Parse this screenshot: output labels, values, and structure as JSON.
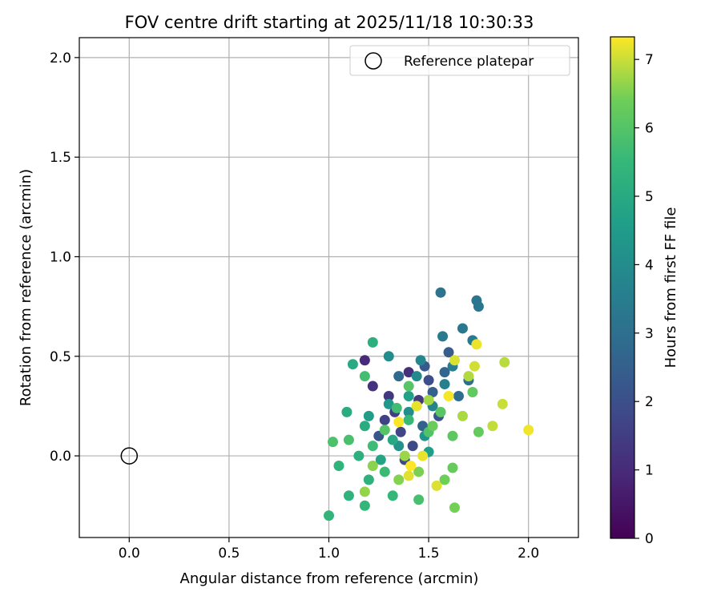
{
  "chart_data": {
    "type": "scatter",
    "title": "FOV centre drift starting at 2025/11/18 10:30:33",
    "xlabel": "Angular distance from reference (arcmin)",
    "ylabel": "Rotation from reference (arcmin)",
    "xlim": [
      -0.25,
      2.25
    ],
    "ylim": [
      -0.41,
      2.1
    ],
    "x_ticks": [
      0.0,
      0.5,
      1.0,
      1.5,
      2.0
    ],
    "y_ticks": [
      0.0,
      0.5,
      1.0,
      1.5,
      2.0
    ],
    "x_tick_labels": [
      "0.0",
      "0.5",
      "1.0",
      "1.5",
      "2.0"
    ],
    "y_tick_labels": [
      "0.0",
      "0.5",
      "1.0",
      "1.5",
      "2.0"
    ],
    "grid": true,
    "legend": {
      "position": "top-right",
      "entries": [
        {
          "label": "Reference platepar",
          "marker": "open-circle"
        }
      ]
    },
    "reference_point": {
      "x": 0.0,
      "y": 0.0
    },
    "colorbar": {
      "label": "Hours from first FF file",
      "colormap": "viridis",
      "range": [
        0,
        7.33
      ],
      "ticks": [
        0,
        1,
        2,
        3,
        4,
        5,
        6,
        7
      ],
      "tick_labels": [
        "0",
        "1",
        "2",
        "3",
        "4",
        "5",
        "6",
        "7"
      ]
    },
    "points": [
      [
        1.18,
        0.48,
        1.0
      ],
      [
        1.4,
        0.42,
        1.1
      ],
      [
        1.22,
        0.35,
        1.2
      ],
      [
        1.3,
        0.3,
        1.3
      ],
      [
        1.45,
        0.28,
        1.4
      ],
      [
        1.33,
        0.22,
        1.5
      ],
      [
        1.28,
        0.18,
        1.6
      ],
      [
        1.36,
        0.12,
        1.7
      ],
      [
        1.42,
        0.05,
        1.8
      ],
      [
        1.38,
        -0.02,
        1.9
      ],
      [
        1.5,
        0.38,
        2.0
      ],
      [
        1.55,
        0.2,
        2.1
      ],
      [
        1.25,
        0.1,
        2.2
      ],
      [
        1.48,
        0.45,
        2.3
      ],
      [
        1.6,
        0.52,
        2.4
      ],
      [
        1.52,
        0.32,
        2.5
      ],
      [
        1.47,
        0.15,
        2.6
      ],
      [
        1.58,
        0.42,
        2.7
      ],
      [
        1.35,
        0.4,
        2.8
      ],
      [
        1.65,
        0.3,
        2.9
      ],
      [
        1.7,
        0.38,
        3.0
      ],
      [
        1.56,
        0.82,
        3.1
      ],
      [
        1.74,
        0.78,
        3.2
      ],
      [
        1.75,
        0.75,
        3.25
      ],
      [
        1.67,
        0.64,
        3.3
      ],
      [
        1.57,
        0.6,
        3.35
      ],
      [
        1.72,
        0.58,
        3.4
      ],
      [
        1.62,
        0.45,
        3.5
      ],
      [
        1.58,
        0.36,
        3.6
      ],
      [
        1.52,
        0.25,
        3.7
      ],
      [
        1.46,
        0.48,
        3.8
      ],
      [
        1.44,
        0.4,
        3.9
      ],
      [
        1.3,
        0.5,
        4.0
      ],
      [
        1.4,
        0.22,
        4.1
      ],
      [
        1.35,
        0.05,
        4.2
      ],
      [
        1.48,
        0.1,
        4.3
      ],
      [
        1.3,
        0.26,
        4.4
      ],
      [
        1.2,
        0.2,
        4.5
      ],
      [
        1.5,
        0.02,
        4.6
      ],
      [
        1.4,
        0.3,
        4.7
      ],
      [
        1.26,
        -0.02,
        4.8
      ],
      [
        1.32,
        0.08,
        4.9
      ],
      [
        1.12,
        0.46,
        5.0
      ],
      [
        1.09,
        0.22,
        5.05
      ],
      [
        1.18,
        0.15,
        5.1
      ],
      [
        1.22,
        0.57,
        5.15
      ],
      [
        1.15,
        0.0,
        5.2
      ],
      [
        1.2,
        -0.12,
        5.25
      ],
      [
        1.1,
        -0.2,
        5.3
      ],
      [
        1.05,
        -0.05,
        5.35
      ],
      [
        1.0,
        -0.3,
        5.4
      ],
      [
        1.18,
        -0.25,
        5.45
      ],
      [
        1.32,
        -0.2,
        5.5
      ],
      [
        1.4,
        0.18,
        5.55
      ],
      [
        1.28,
        -0.08,
        5.6
      ],
      [
        1.22,
        0.05,
        5.65
      ],
      [
        1.34,
        0.24,
        5.7
      ],
      [
        1.18,
        0.4,
        5.75
      ],
      [
        1.45,
        -0.22,
        5.8
      ],
      [
        1.1,
        0.08,
        5.85
      ],
      [
        1.02,
        0.07,
        5.9
      ],
      [
        1.5,
        0.12,
        5.95
      ],
      [
        1.28,
        0.13,
        6.0
      ],
      [
        1.4,
        0.35,
        6.05
      ],
      [
        1.56,
        0.22,
        6.1
      ],
      [
        1.62,
        0.1,
        6.15
      ],
      [
        1.72,
        0.32,
        6.2
      ],
      [
        1.75,
        0.12,
        6.25
      ],
      [
        1.62,
        -0.06,
        6.3
      ],
      [
        1.52,
        0.15,
        6.35
      ],
      [
        1.58,
        -0.12,
        6.4
      ],
      [
        1.63,
        -0.26,
        6.45
      ],
      [
        1.45,
        -0.08,
        6.5
      ],
      [
        1.35,
        -0.12,
        6.55
      ],
      [
        1.22,
        -0.05,
        6.6
      ],
      [
        1.18,
        -0.18,
        6.65
      ],
      [
        1.38,
        0.0,
        6.7
      ],
      [
        1.5,
        0.28,
        6.75
      ],
      [
        1.67,
        0.2,
        6.8
      ],
      [
        1.7,
        0.4,
        6.85
      ],
      [
        1.88,
        0.47,
        6.9
      ],
      [
        1.82,
        0.15,
        6.95
      ],
      [
        1.87,
        0.26,
        7.0
      ],
      [
        1.73,
        0.45,
        7.05
      ],
      [
        1.63,
        0.48,
        7.1
      ],
      [
        1.54,
        -0.15,
        7.12
      ],
      [
        1.4,
        -0.1,
        7.15
      ],
      [
        1.44,
        0.25,
        7.18
      ],
      [
        1.47,
        0.0,
        7.2
      ],
      [
        1.74,
        0.56,
        7.22
      ],
      [
        2.0,
        0.13,
        7.25
      ],
      [
        1.6,
        0.3,
        7.28
      ],
      [
        1.35,
        0.17,
        7.3
      ],
      [
        1.41,
        -0.05,
        7.32
      ]
    ]
  }
}
